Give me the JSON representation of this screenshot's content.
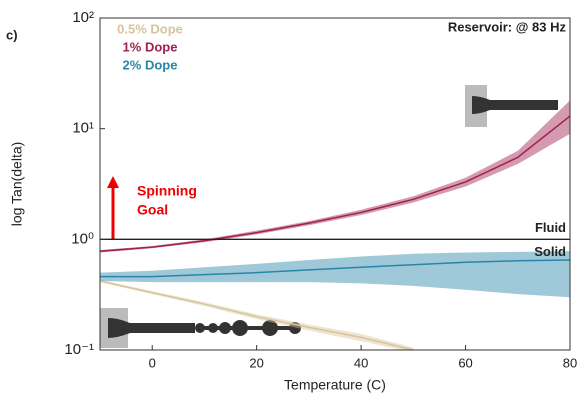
{
  "chart_data": {
    "type": "line",
    "panel_label": "c)",
    "annotation": "Reservoir: @ 83 Hz",
    "goal_label": [
      "Spinning",
      "Goal"
    ],
    "xlabel": "Temperature (C)",
    "ylabel": "log Tan(delta)",
    "log_y": true,
    "xlim": [
      -10,
      80
    ],
    "xticks": [
      0,
      20,
      40,
      60,
      80
    ],
    "ylim": [
      0.1,
      100
    ],
    "yticks": [
      {
        "value": 0.1,
        "label": "10⁻¹"
      },
      {
        "value": 1,
        "label": "10⁰"
      },
      {
        "value": 10,
        "label": "10¹"
      },
      {
        "value": 100,
        "label": "10²"
      }
    ],
    "reference_line": {
      "value": 1,
      "label_above": "Fluid",
      "label_below": "Solid",
      "color": "#222222"
    },
    "x": [
      -10,
      0,
      10,
      20,
      30,
      40,
      50,
      60,
      70,
      80
    ],
    "series": [
      {
        "name": "0.5% Dope",
        "color": "#d8c49a",
        "values": [
          0.42,
          0.33,
          0.26,
          0.2,
          0.16,
          0.13,
          0.1,
          null,
          null,
          null
        ],
        "band_low": [
          0.41,
          0.32,
          0.25,
          0.19,
          0.15,
          0.12,
          0.095,
          null,
          null,
          null
        ],
        "band_high": [
          0.43,
          0.34,
          0.27,
          0.21,
          0.17,
          0.14,
          0.105,
          null,
          null,
          null
        ]
      },
      {
        "name": "1% Dope",
        "color": "#a0204f",
        "values": [
          0.78,
          0.85,
          0.97,
          1.15,
          1.4,
          1.75,
          2.3,
          3.3,
          5.5,
          13
        ],
        "band_low": [
          0.76,
          0.83,
          0.94,
          1.11,
          1.34,
          1.66,
          2.15,
          3.0,
          4.8,
          9
        ],
        "band_high": [
          0.8,
          0.87,
          1.0,
          1.2,
          1.46,
          1.85,
          2.45,
          3.6,
          6.3,
          18
        ]
      },
      {
        "name": "2% Dope",
        "color": "#2a86a8",
        "values": [
          0.46,
          0.46,
          0.48,
          0.5,
          0.53,
          0.56,
          0.59,
          0.62,
          0.64,
          0.65
        ],
        "band_low": [
          0.42,
          0.41,
          0.41,
          0.41,
          0.41,
          0.4,
          0.38,
          0.35,
          0.32,
          0.3
        ],
        "band_high": [
          0.5,
          0.52,
          0.56,
          0.6,
          0.65,
          0.7,
          0.74,
          0.76,
          0.77,
          0.78
        ]
      }
    ]
  }
}
